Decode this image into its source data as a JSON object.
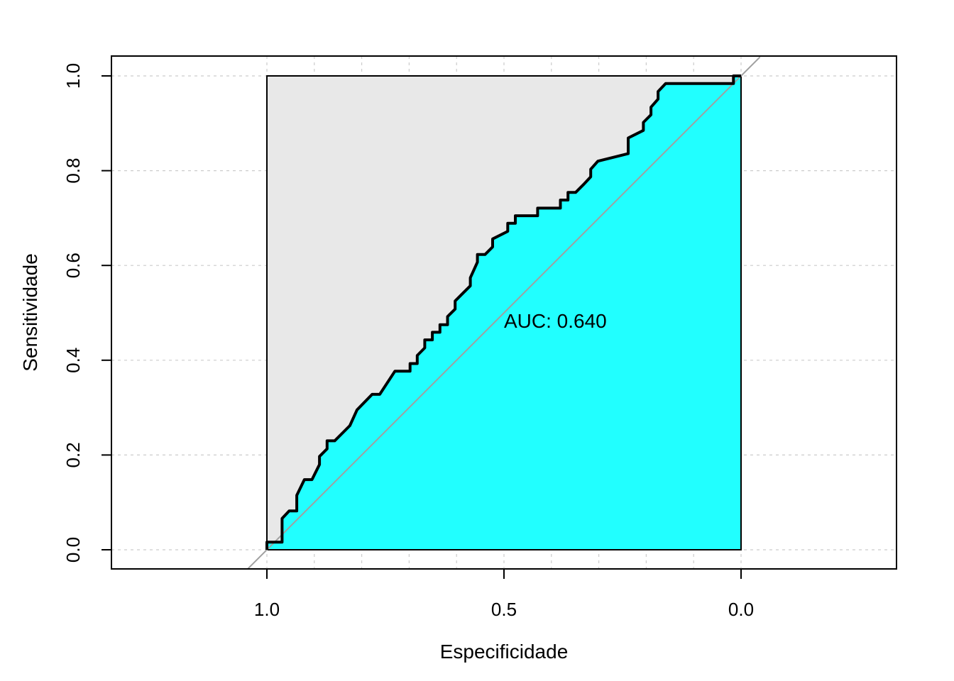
{
  "chart_data": {
    "type": "line",
    "subtype": "roc_curve",
    "title": "",
    "xlabel": "Especificidade",
    "ylabel": "Sensitividade",
    "x_reversed": true,
    "xlim": [
      1.33,
      -0.33
    ],
    "ylim": [
      -0.04,
      1.04
    ],
    "x_ticks": [
      1.0,
      0.5,
      0.0
    ],
    "x_tick_labels": [
      "1.0",
      "0.5",
      "0.0"
    ],
    "y_ticks": [
      0.0,
      0.2,
      0.4,
      0.6,
      0.8,
      1.0
    ],
    "y_tick_labels": [
      "0.0",
      "0.2",
      "0.4",
      "0.6",
      "0.8",
      "1.0"
    ],
    "grid": true,
    "grid_x": [
      1.0,
      0.9,
      0.8,
      0.7,
      0.6,
      0.5,
      0.4,
      0.3,
      0.2,
      0.1,
      0.0
    ],
    "grid_y": [
      0.0,
      0.2,
      0.4,
      0.6,
      0.8,
      1.0
    ],
    "auc_label": "AUC: 0.640",
    "auc_label_position": [
      0.5,
      0.48
    ],
    "colors": {
      "auc_fill": "#21FFFF",
      "background_square": "#E8E8E8",
      "curve": "#000000",
      "diagonal": "#A0A0A0",
      "grid": "#CCCCCC"
    },
    "series": [
      {
        "specificity": [
          1.0,
          1.0,
          0.968,
          0.968,
          0.953,
          0.937,
          0.937,
          0.921,
          0.905,
          0.889,
          0.889,
          0.873,
          0.873,
          0.857,
          0.825,
          0.81,
          0.778,
          0.762,
          0.73,
          0.698,
          0.698,
          0.683,
          0.683,
          0.667,
          0.667,
          0.651,
          0.651,
          0.635,
          0.635,
          0.619,
          0.619,
          0.603,
          0.603,
          0.587,
          0.571,
          0.571,
          0.556,
          0.556,
          0.54,
          0.524,
          0.524,
          0.492,
          0.492,
          0.476,
          0.476,
          0.429,
          0.429,
          0.381,
          0.381,
          0.365,
          0.365,
          0.349,
          0.333,
          0.317,
          0.317,
          0.302,
          0.238,
          0.238,
          0.238,
          0.206,
          0.206,
          0.19,
          0.19,
          0.175,
          0.175,
          0.159,
          0.143,
          0.143,
          0.111,
          0.079,
          0.048,
          0.016,
          0.016,
          0.0
        ],
        "sensitivity": [
          0.0,
          0.016,
          0.016,
          0.066,
          0.082,
          0.082,
          0.115,
          0.148,
          0.148,
          0.18,
          0.197,
          0.213,
          0.23,
          0.23,
          0.262,
          0.295,
          0.328,
          0.328,
          0.377,
          0.377,
          0.393,
          0.393,
          0.41,
          0.426,
          0.443,
          0.443,
          0.459,
          0.459,
          0.475,
          0.475,
          0.492,
          0.508,
          0.525,
          0.541,
          0.557,
          0.574,
          0.607,
          0.623,
          0.623,
          0.639,
          0.656,
          0.672,
          0.689,
          0.689,
          0.705,
          0.705,
          0.721,
          0.721,
          0.738,
          0.738,
          0.754,
          0.754,
          0.77,
          0.787,
          0.803,
          0.82,
          0.836,
          0.852,
          0.869,
          0.885,
          0.902,
          0.918,
          0.934,
          0.951,
          0.967,
          0.984,
          0.984,
          0.984,
          0.984,
          0.984,
          0.984,
          0.984,
          1.0,
          1.0
        ]
      }
    ]
  }
}
